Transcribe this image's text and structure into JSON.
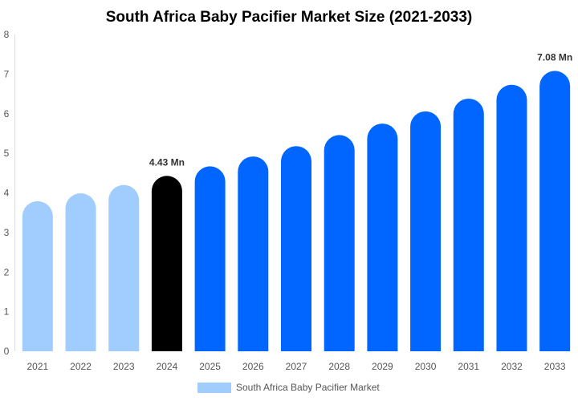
{
  "chart_data": {
    "type": "bar",
    "title": "South Africa Baby Pacifier Market Size (2021-2033)",
    "xlabel": "",
    "ylabel": "",
    "ylim": [
      0,
      8
    ],
    "yticks": [
      "0",
      "1",
      "2",
      "3",
      "4",
      "5",
      "6",
      "7",
      "8"
    ],
    "categories": [
      "2021",
      "2022",
      "2023",
      "2024",
      "2025",
      "2026",
      "2027",
      "2028",
      "2029",
      "2030",
      "2031",
      "2032",
      "2033"
    ],
    "series": [
      {
        "name": "South Africa Baby Pacifier Market",
        "values": [
          3.79,
          3.99,
          4.2,
          4.43,
          4.67,
          4.92,
          5.18,
          5.46,
          5.75,
          6.06,
          6.38,
          6.73,
          7.08
        ]
      }
    ],
    "data_labels": {
      "2024": "4.43 Mn",
      "2033": "7.08 Mn"
    },
    "colors": {
      "historical": "#a0cdfd",
      "base_year": "#000000",
      "forecast": "#0066ff"
    },
    "grid": false,
    "legend_position": "bottom"
  }
}
